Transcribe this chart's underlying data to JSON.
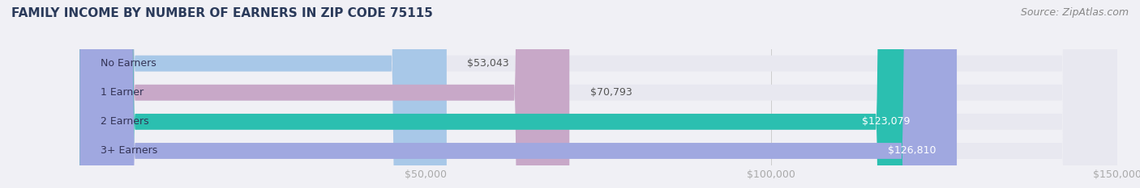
{
  "title": "FAMILY INCOME BY NUMBER OF EARNERS IN ZIP CODE 75115",
  "source": "Source: ZipAtlas.com",
  "categories": [
    "No Earners",
    "1 Earner",
    "2 Earners",
    "3+ Earners"
  ],
  "values": [
    53043,
    70793,
    123079,
    126810
  ],
  "bar_colors": [
    "#a8c8e8",
    "#c8a8c8",
    "#2bbfb0",
    "#a0a8e0"
  ],
  "label_colors": [
    "#555555",
    "#555555",
    "#ffffff",
    "#ffffff"
  ],
  "xmin": 0,
  "xmax": 150000,
  "xticks": [
    50000,
    100000,
    150000
  ],
  "xtick_labels": [
    "$50,000",
    "$100,000",
    "$150,000"
  ],
  "background_color": "#f0f0f5",
  "bar_bg_color": "#e8e8f0",
  "title_color": "#2a3a5a",
  "title_fontsize": 11,
  "source_fontsize": 9,
  "label_fontsize": 9,
  "category_fontsize": 9
}
